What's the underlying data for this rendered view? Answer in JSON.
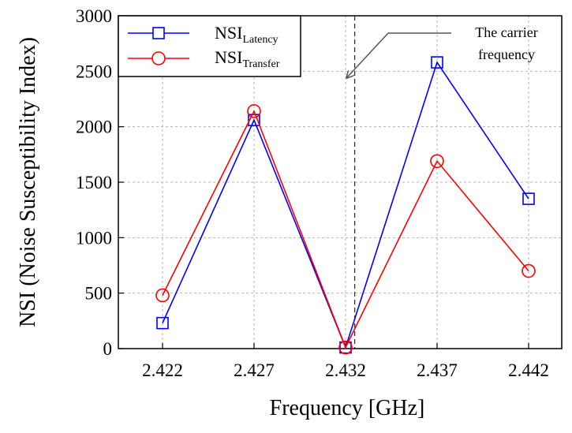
{
  "chart_data": {
    "type": "line",
    "title": "",
    "xlabel": "Frequency [GHz]",
    "ylabel": "NSI (Noise Susceptibility Index)",
    "categories": [
      "2.422",
      "2.427",
      "2.432",
      "2.437",
      "2.442"
    ],
    "ylim": [
      0,
      3000
    ],
    "yticks": [
      0,
      500,
      1000,
      1500,
      2000,
      2500,
      3000
    ],
    "grid": true,
    "legend_position": "top-left",
    "series": [
      {
        "name": "NSI",
        "subscript": "Latency",
        "color": "#0000ff",
        "marker": "square",
        "values": [
          230,
          2060,
          10,
          2580,
          1350
        ]
      },
      {
        "name": "NSI",
        "subscript": "Transfer",
        "color": "#ff0000",
        "marker": "circle",
        "values": [
          480,
          2140,
          10,
          1690,
          700
        ]
      }
    ],
    "annotation": {
      "line1": "The carrier",
      "line2": "frequency",
      "x_value": 2.4325
    }
  }
}
